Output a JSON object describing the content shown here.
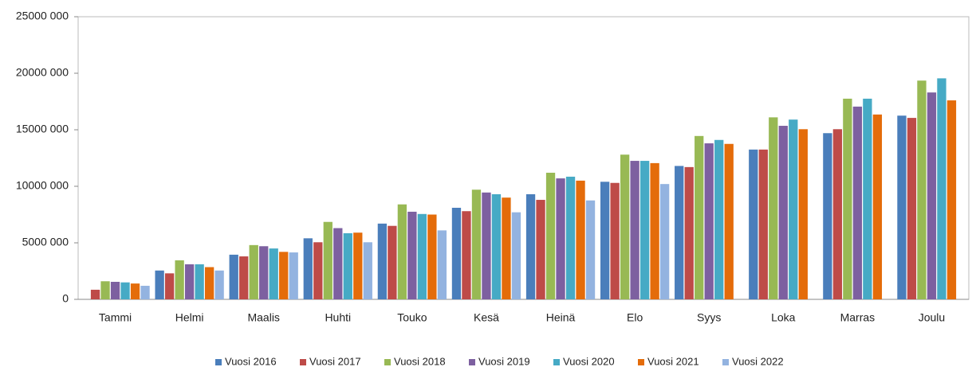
{
  "chart_data": {
    "type": "bar",
    "categories": [
      "Tammi",
      "Helmi",
      "Maalis",
      "Huhti",
      "Touko",
      "Kesä",
      "Heinä",
      "Elo",
      "Syys",
      "Loka",
      "Marras",
      "Joulu"
    ],
    "series": [
      {
        "name": "Vuosi 2016",
        "color": "#4a7ebb",
        "values": [
          null,
          2550000,
          3950000,
          5400000,
          6700000,
          8100000,
          9300000,
          10400000,
          11800000,
          13250000,
          14700000,
          16250000
        ]
      },
      {
        "name": "Vuosi 2017",
        "color": "#be4b48",
        "values": [
          850000,
          2300000,
          3800000,
          5050000,
          6500000,
          7800000,
          8800000,
          10300000,
          11700000,
          13250000,
          15050000,
          16050000
        ]
      },
      {
        "name": "Vuosi 2018",
        "color": "#98b954",
        "values": [
          1600000,
          3450000,
          4800000,
          6850000,
          8400000,
          9700000,
          11200000,
          12800000,
          14450000,
          16100000,
          17750000,
          19350000
        ]
      },
      {
        "name": "Vuosi 2019",
        "color": "#7d60a0",
        "values": [
          1550000,
          3100000,
          4700000,
          6300000,
          7750000,
          9450000,
          10700000,
          12250000,
          13800000,
          15350000,
          17050000,
          18300000
        ]
      },
      {
        "name": "Vuosi 2020",
        "color": "#46aac5",
        "values": [
          1500000,
          3100000,
          4500000,
          5850000,
          7550000,
          9300000,
          10850000,
          12250000,
          14100000,
          15900000,
          17750000,
          19550000
        ]
      },
      {
        "name": "Vuosi 2021",
        "color": "#e46c0a",
        "values": [
          1400000,
          2850000,
          4200000,
          5900000,
          7500000,
          9000000,
          10500000,
          12050000,
          13750000,
          15050000,
          16350000,
          17600000
        ]
      },
      {
        "name": "Vuosi 2022",
        "color": "#93b3e0",
        "values": [
          1200000,
          2550000,
          4150000,
          5050000,
          6100000,
          7700000,
          8750000,
          10200000,
          null,
          null,
          null,
          null
        ]
      }
    ],
    "ylim": [
      0,
      25000000
    ],
    "yticks": [
      0,
      {
        "value": 5000000,
        "label": "5000 000"
      },
      {
        "value": 10000000,
        "label": "10000 000"
      },
      {
        "value": 15000000,
        "label": "15000 000"
      },
      {
        "value": 20000000,
        "label": "20000 000"
      },
      {
        "value": 25000000,
        "label": "25000 000"
      }
    ],
    "grid": false,
    "legend": "bottom"
  }
}
